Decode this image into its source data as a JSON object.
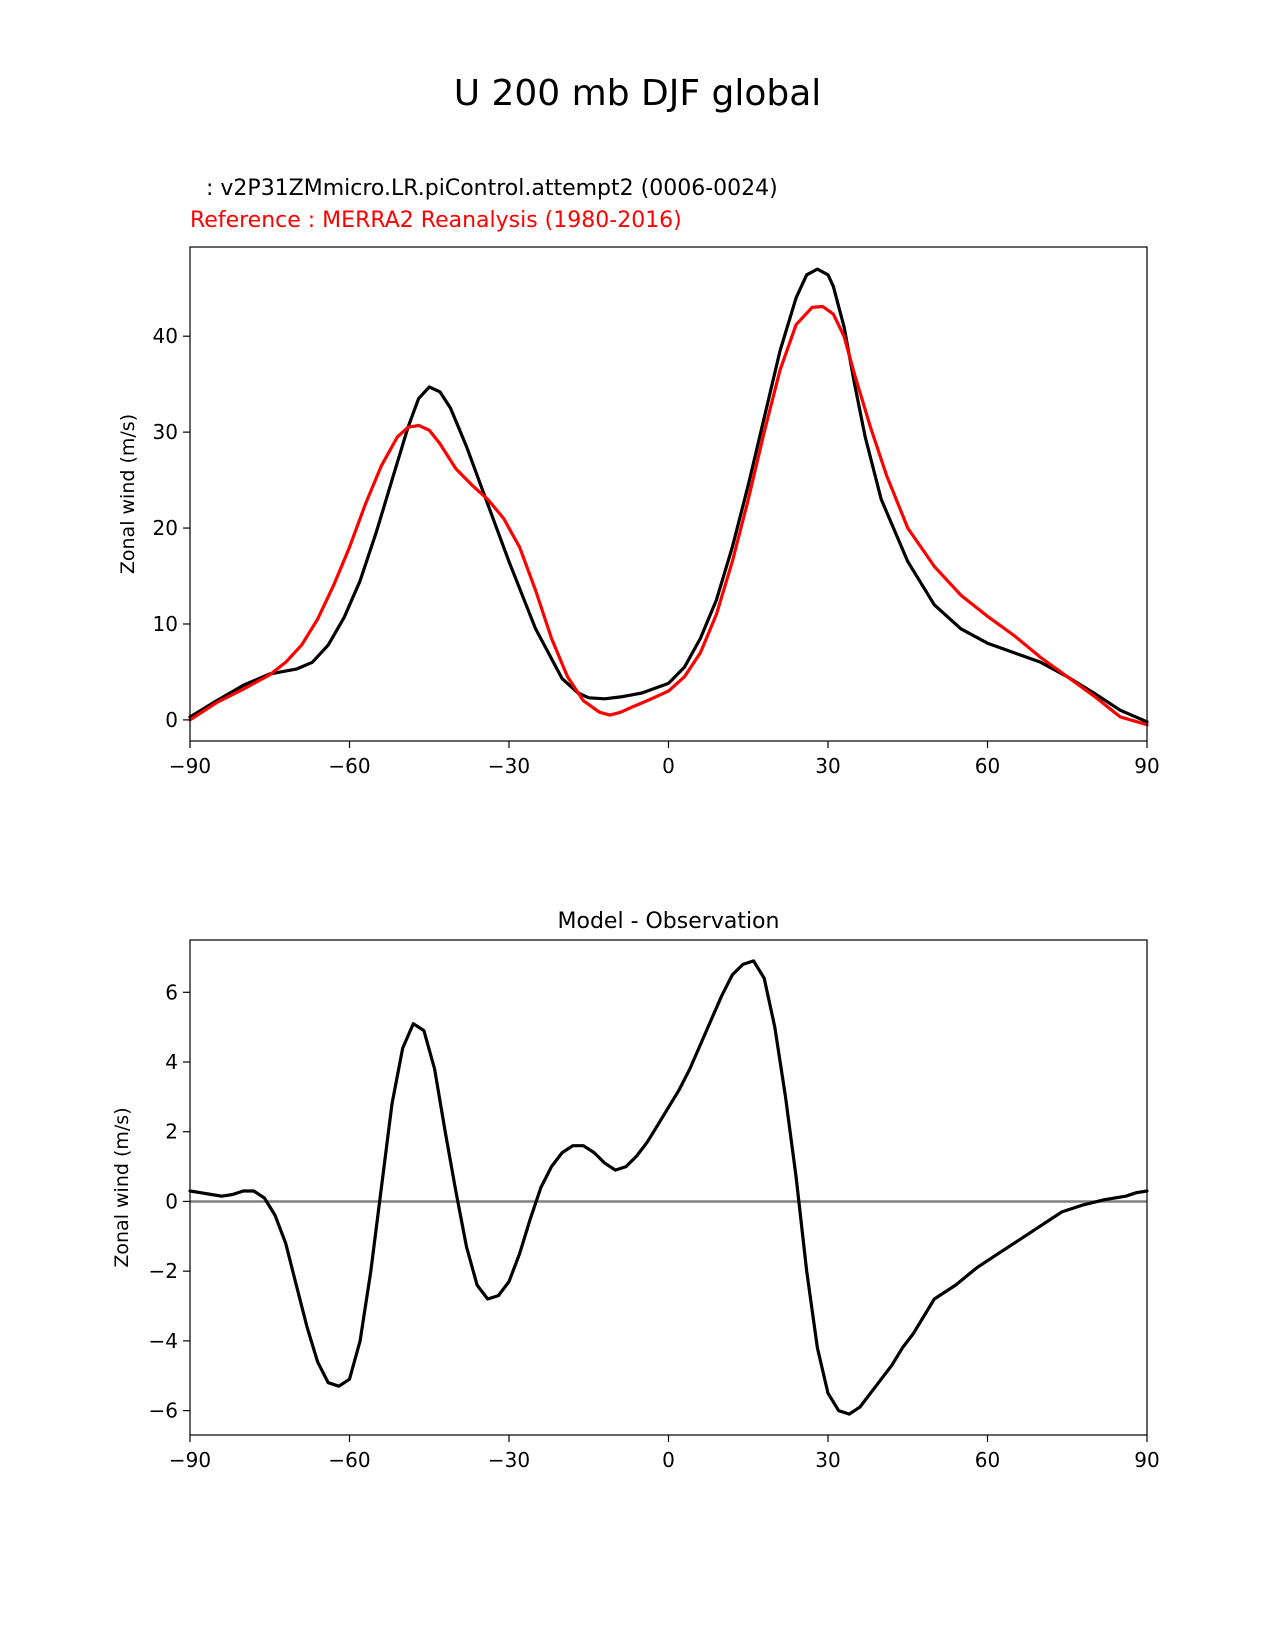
{
  "figure": {
    "suptitle": "U 200 mb DJF global",
    "test_label": " : v2P31ZMmicro.LR.piControl.attempt2 (0006-0024)",
    "reference_label": "Reference : MERRA2 Reanalysis (1980-2016)"
  },
  "chart_data": [
    {
      "type": "line",
      "title": "",
      "xlabel": "",
      "ylabel": "Zonal wind (m/s)",
      "xlim": [
        -90,
        90
      ],
      "ylim": [
        -2.2,
        49.3
      ],
      "xticks": [
        -90,
        -60,
        -30,
        0,
        30,
        60,
        90
      ],
      "xtick_labels": [
        "−90",
        "−60",
        "−30",
        "0",
        "30",
        "60",
        "90"
      ],
      "yticks": [
        0,
        10,
        20,
        30,
        40
      ],
      "ytick_labels": [
        "0",
        "10",
        "20",
        "30",
        "40"
      ],
      "grid": false,
      "series": [
        {
          "name": "v2P31ZMmicro.LR.piControl.attempt2 (0006-0024)",
          "color": "#000000",
          "x": [
            -90,
            -85,
            -80,
            -75,
            -70,
            -67,
            -64,
            -61,
            -58,
            -55,
            -52,
            -49,
            -47,
            -45,
            -43,
            -41,
            -38,
            -35,
            -30,
            -25,
            -20,
            -17,
            -15,
            -12,
            -9,
            -5,
            0,
            3,
            6,
            9,
            12,
            15,
            18,
            21,
            24,
            26,
            28,
            30,
            31,
            33,
            35,
            37,
            40,
            45,
            50,
            55,
            60,
            65,
            70,
            75,
            80,
            85,
            90
          ],
          "y": [
            0.3,
            2.0,
            3.6,
            4.8,
            5.3,
            6.0,
            7.8,
            10.7,
            14.5,
            19.5,
            25.0,
            30.5,
            33.5,
            34.7,
            34.2,
            32.5,
            28.5,
            24.0,
            16.5,
            9.5,
            4.3,
            2.8,
            2.3,
            2.2,
            2.4,
            2.8,
            3.8,
            5.5,
            8.5,
            12.5,
            18.0,
            24.5,
            31.5,
            38.5,
            44.0,
            46.4,
            47.0,
            46.4,
            45.2,
            41.0,
            35.0,
            29.5,
            23.0,
            16.5,
            12.0,
            9.5,
            8.0,
            7.0,
            6.0,
            4.5,
            2.8,
            1.0,
            -0.2
          ]
        },
        {
          "name": "MERRA2 Reanalysis (1980-2016)",
          "color": "#ff0000",
          "x": [
            -90,
            -85,
            -80,
            -75,
            -72,
            -69,
            -66,
            -63,
            -60,
            -57,
            -54,
            -51,
            -49,
            -47,
            -45,
            -43,
            -40,
            -37,
            -34,
            -31,
            -28,
            -25,
            -22,
            -19,
            -16,
            -13,
            -11,
            -9,
            -7,
            -4,
            0,
            3,
            6,
            9,
            12,
            15,
            18,
            21,
            24,
            27,
            29,
            31,
            33,
            35,
            38,
            41,
            45,
            50,
            55,
            60,
            65,
            70,
            75,
            80,
            85,
            90
          ],
          "y": [
            0.0,
            1.8,
            3.2,
            4.7,
            6.0,
            7.8,
            10.5,
            14.0,
            18.0,
            22.5,
            26.5,
            29.5,
            30.5,
            30.7,
            30.2,
            28.8,
            26.2,
            24.5,
            23.0,
            21.0,
            18.0,
            13.5,
            8.5,
            4.5,
            2.0,
            0.8,
            0.5,
            0.8,
            1.3,
            2.0,
            3.0,
            4.5,
            7.0,
            11.0,
            16.5,
            23.0,
            30.0,
            36.5,
            41.2,
            43.0,
            43.1,
            42.3,
            40.0,
            36.0,
            30.5,
            25.5,
            20.0,
            16.0,
            13.0,
            10.8,
            8.8,
            6.5,
            4.5,
            2.5,
            0.3,
            -0.5
          ]
        }
      ]
    },
    {
      "type": "line",
      "title": "Model - Observation",
      "xlabel": "",
      "ylabel": "Zonal wind (m/s)",
      "xlim": [
        -90,
        90
      ],
      "ylim": [
        -6.7,
        7.5
      ],
      "xticks": [
        -90,
        -60,
        -30,
        0,
        30,
        60,
        90
      ],
      "xtick_labels": [
        "−90",
        "−60",
        "−30",
        "0",
        "30",
        "60",
        "90"
      ],
      "yticks": [
        -6,
        -4,
        -2,
        0,
        2,
        4,
        6
      ],
      "ytick_labels": [
        "−6",
        "−4",
        "−2",
        "0",
        "2",
        "4",
        "6"
      ],
      "grid": false,
      "zero_line": {
        "y": 0,
        "color": "#808080"
      },
      "series": [
        {
          "name": "Model - Observation",
          "color": "#000000",
          "x": [
            -90,
            -88,
            -86,
            -84,
            -82,
            -80,
            -78,
            -76,
            -74,
            -72,
            -70,
            -68,
            -66,
            -64,
            -62,
            -60,
            -58,
            -56,
            -54,
            -52,
            -50,
            -48,
            -46,
            -44,
            -42,
            -40,
            -38,
            -36,
            -34,
            -32,
            -30,
            -28,
            -26,
            -24,
            -22,
            -20,
            -18,
            -16,
            -14,
            -12,
            -10,
            -8,
            -6,
            -4,
            -2,
            0,
            2,
            4,
            6,
            8,
            10,
            12,
            14,
            16,
            18,
            20,
            22,
            24,
            26,
            28,
            30,
            32,
            34,
            36,
            38,
            40,
            42,
            44,
            46,
            48,
            50,
            54,
            58,
            62,
            66,
            70,
            74,
            78,
            82,
            86,
            88,
            90
          ],
          "y": [
            0.3,
            0.25,
            0.2,
            0.15,
            0.2,
            0.3,
            0.3,
            0.1,
            -0.4,
            -1.2,
            -2.4,
            -3.6,
            -4.6,
            -5.2,
            -5.3,
            -5.1,
            -4.0,
            -2.0,
            0.4,
            2.8,
            4.4,
            5.1,
            4.9,
            3.8,
            2.0,
            0.3,
            -1.3,
            -2.4,
            -2.8,
            -2.7,
            -2.3,
            -1.5,
            -0.5,
            0.4,
            1.0,
            1.4,
            1.6,
            1.6,
            1.4,
            1.1,
            0.9,
            1.0,
            1.3,
            1.7,
            2.2,
            2.7,
            3.2,
            3.8,
            4.5,
            5.2,
            5.9,
            6.5,
            6.8,
            6.9,
            6.4,
            5.0,
            3.0,
            0.7,
            -2.0,
            -4.2,
            -5.5,
            -6.0,
            -6.1,
            -5.9,
            -5.5,
            -5.1,
            -4.7,
            -4.2,
            -3.8,
            -3.3,
            -2.8,
            -2.4,
            -1.9,
            -1.5,
            -1.1,
            -0.7,
            -0.3,
            -0.1,
            0.05,
            0.15,
            0.25,
            0.3
          ]
        }
      ]
    }
  ]
}
